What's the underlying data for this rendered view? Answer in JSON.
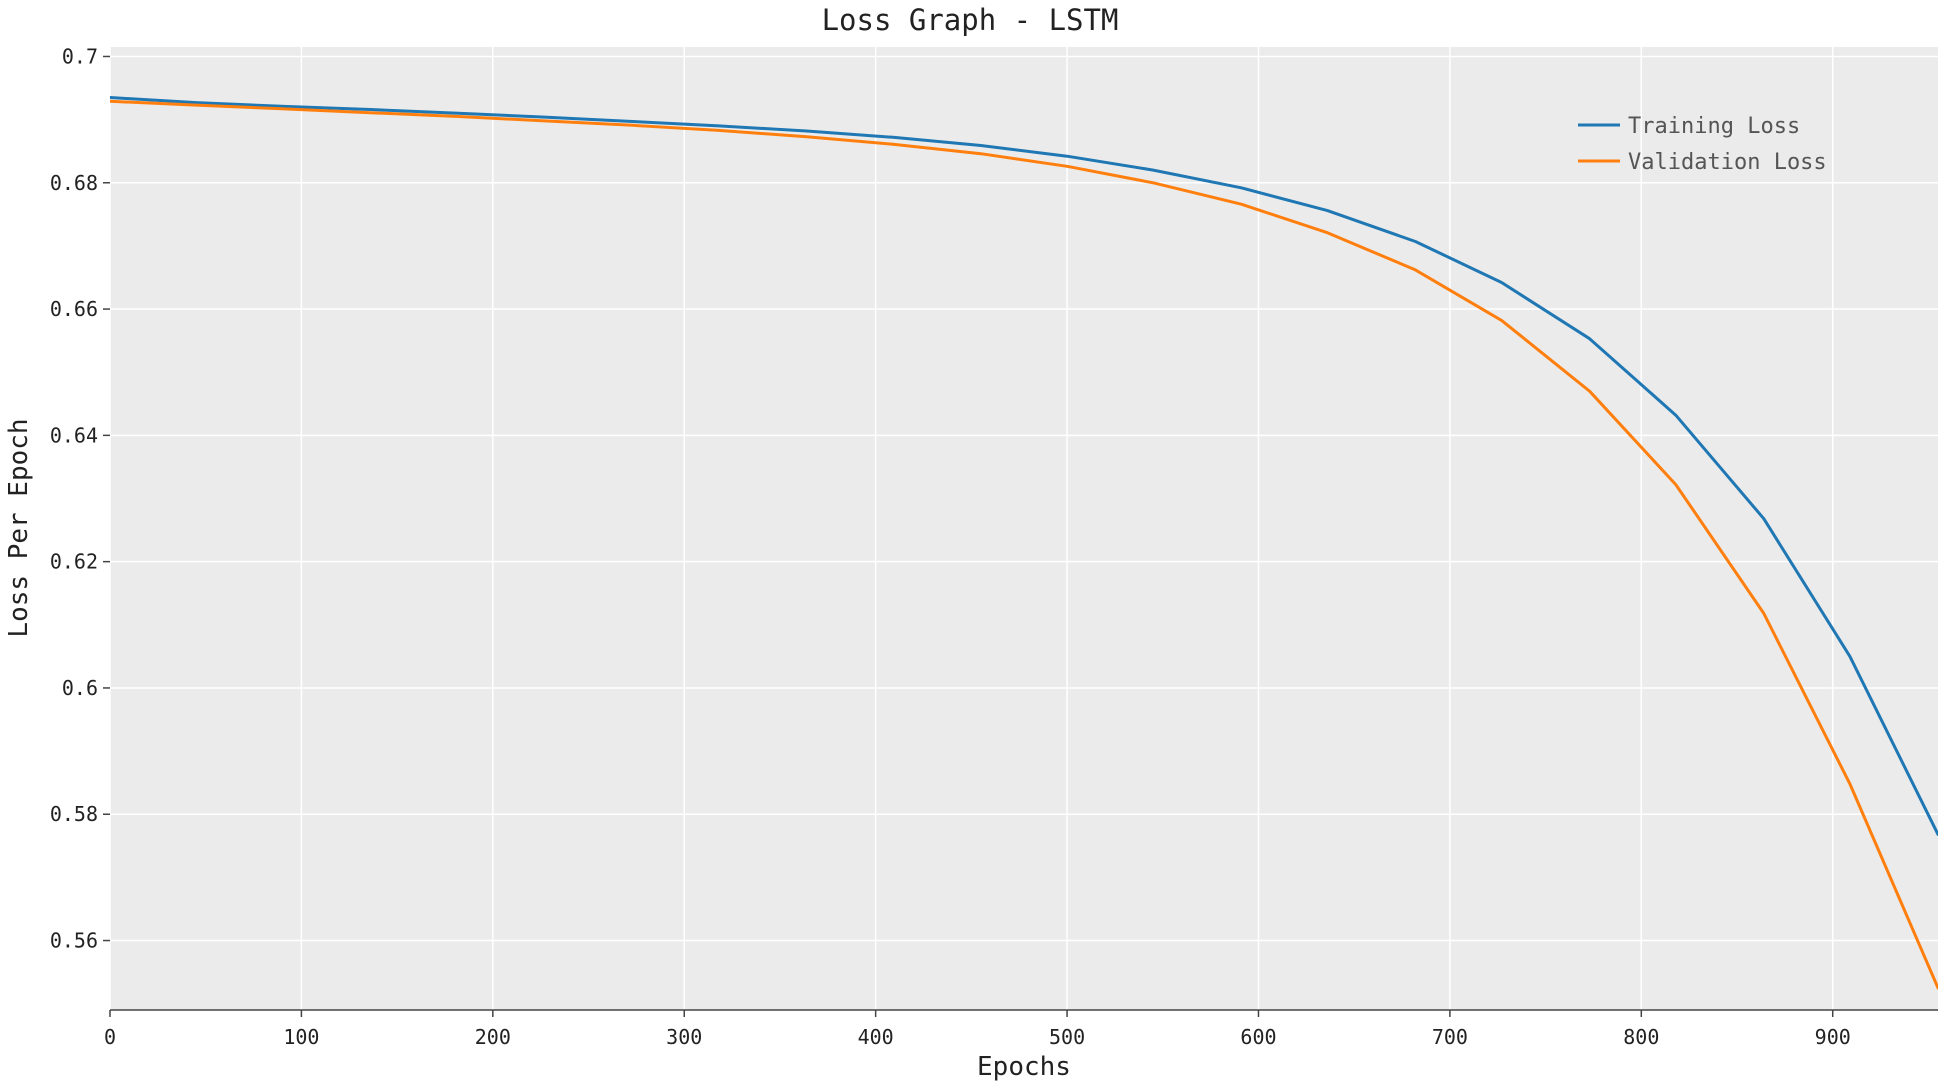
{
  "chart_data": {
    "type": "line",
    "title": "Loss Graph - LSTM",
    "xlabel": "Epochs",
    "ylabel": "Loss Per Epoch",
    "xlim": [
      0,
      955
    ],
    "ylim": [
      0.549,
      0.7015
    ],
    "xticks": [
      0,
      100,
      200,
      300,
      400,
      500,
      600,
      700,
      800,
      900
    ],
    "xtick_labels": [
      "0",
      "100",
      "200",
      "300",
      "400",
      "500",
      "600",
      "700",
      "800",
      "900"
    ],
    "yticks": [
      0.56,
      0.58,
      0.6,
      0.62,
      0.64,
      0.66,
      0.68,
      0.7
    ],
    "ytick_labels": [
      "0.56",
      "0.58",
      "0.6",
      "0.62",
      "0.64",
      "0.66",
      "0.68",
      "0.7"
    ],
    "grid": true,
    "legend_position": "top-right",
    "background_color": "#ebebeb",
    "grid_color": "#ffffff",
    "series": [
      {
        "name": "Training Loss",
        "color": "#1f77b4",
        "x": [
          0,
          45,
          91,
          136,
          182,
          227,
          273,
          318,
          364,
          409,
          455,
          500,
          545,
          591,
          636,
          682,
          727,
          773,
          818,
          864,
          909,
          955
        ],
        "y": [
          0.6935,
          0.6927,
          0.6921,
          0.6916,
          0.691,
          0.6904,
          0.6897,
          0.689,
          0.6882,
          0.6872,
          0.6859,
          0.6842,
          0.682,
          0.6792,
          0.6756,
          0.6707,
          0.6642,
          0.6553,
          0.6432,
          0.6268,
          0.605,
          0.5768
        ]
      },
      {
        "name": "Validation Loss",
        "color": "#ff7f0e",
        "x": [
          0,
          45,
          91,
          136,
          182,
          227,
          273,
          318,
          364,
          409,
          455,
          500,
          545,
          591,
          636,
          682,
          727,
          773,
          818,
          864,
          909,
          955
        ],
        "y": [
          0.6929,
          0.6923,
          0.6917,
          0.6911,
          0.6905,
          0.6898,
          0.6891,
          0.6883,
          0.6873,
          0.6861,
          0.6846,
          0.6826,
          0.68,
          0.6766,
          0.6721,
          0.6662,
          0.6582,
          0.647,
          0.6322,
          0.6118,
          0.5848,
          0.5525
        ]
      }
    ]
  }
}
